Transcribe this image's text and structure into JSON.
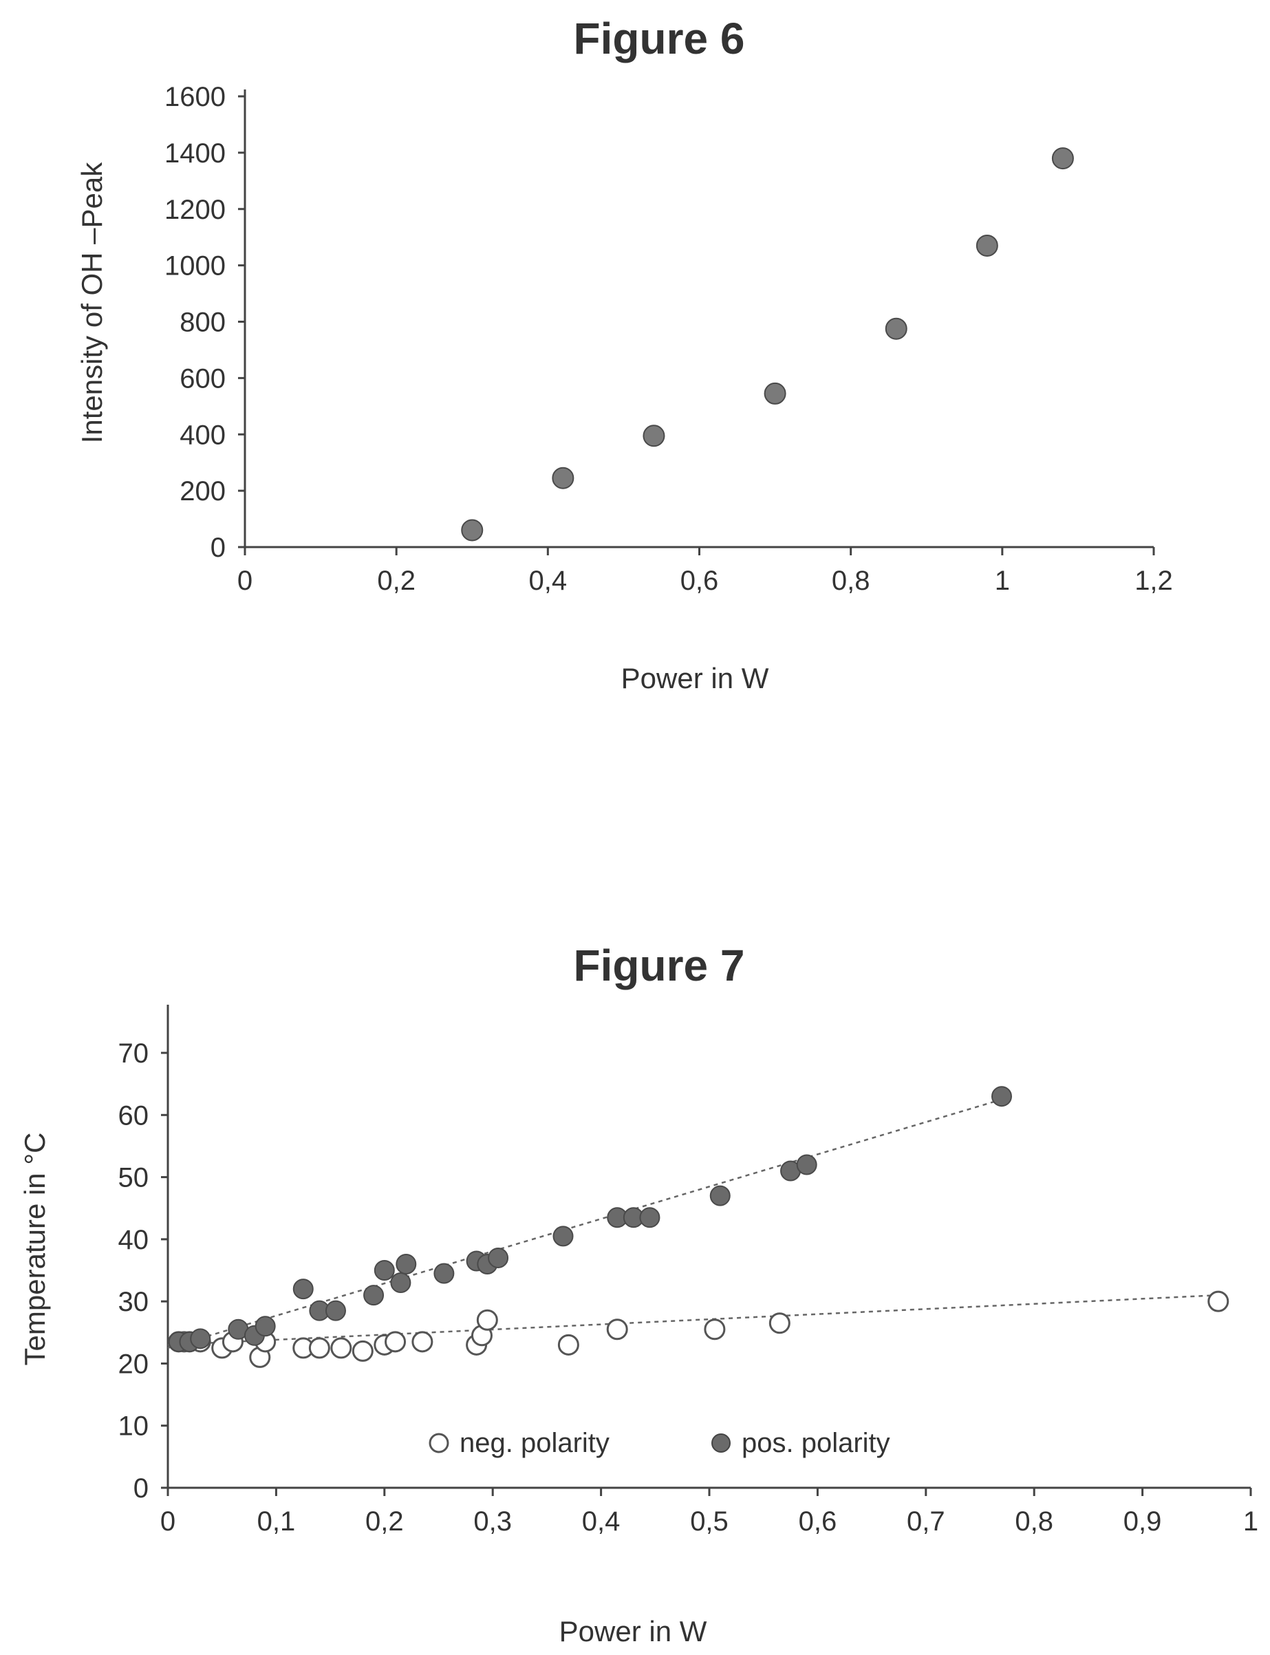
{
  "chart_data": [
    {
      "type": "scatter",
      "title": "Figure 6",
      "xlabel": "Power in W",
      "ylabel": "Intensity of OH –Peak",
      "xlim": [
        0,
        1.2
      ],
      "ylim": [
        0,
        1600
      ],
      "x_ticks": [
        "0",
        "0,2",
        "0,4",
        "0,6",
        "0,8",
        "1",
        "1,2"
      ],
      "y_ticks": [
        "0",
        "200",
        "400",
        "600",
        "800",
        "1000",
        "1200",
        "1400",
        "1600"
      ],
      "grid": false,
      "series": [
        {
          "marker": "filled-circle",
          "color": "#7a7a7a",
          "x": [
            0.3,
            0.42,
            0.54,
            0.7,
            0.86,
            0.98,
            1.08
          ],
          "y": [
            60,
            245,
            395,
            545,
            775,
            1070,
            1380
          ]
        }
      ]
    },
    {
      "type": "scatter",
      "title": "Figure 7",
      "xlabel": "Power in W",
      "ylabel": "Temperature in °C",
      "xlim": [
        0,
        1
      ],
      "ylim": [
        0,
        70
      ],
      "x_ticks": [
        "0",
        "0,1",
        "0,2",
        "0,3",
        "0,4",
        "0,5",
        "0,6",
        "0,7",
        "0,8",
        "0,9",
        "1"
      ],
      "y_ticks": [
        "0",
        "10",
        "20",
        "30",
        "40",
        "50",
        "60",
        "70"
      ],
      "grid": false,
      "legend_position": "bottom-center",
      "series": [
        {
          "name": "neg. polarity",
          "marker": "open-circle",
          "color": "#555555",
          "trendline": {
            "x": [
              0,
              0.97
            ],
            "y": [
              23,
              31
            ]
          },
          "x": [
            0.01,
            0.015,
            0.02,
            0.03,
            0.05,
            0.06,
            0.085,
            0.09,
            0.125,
            0.14,
            0.16,
            0.18,
            0.2,
            0.21,
            0.235,
            0.285,
            0.29,
            0.295,
            0.37,
            0.415,
            0.505,
            0.565,
            0.97
          ],
          "y": [
            23.5,
            23.5,
            23.5,
            23.5,
            22.5,
            23.5,
            21,
            23.5,
            22.5,
            22.5,
            22.5,
            22,
            23,
            23.5,
            23.5,
            23,
            24.5,
            27,
            23,
            25.5,
            25.5,
            26.5,
            30
          ]
        },
        {
          "name": "pos. polarity",
          "marker": "filled-circle",
          "color": "#6a6a6a",
          "trendline": {
            "x": [
              0,
              0.77
            ],
            "y": [
              22.5,
              62.5
            ]
          },
          "x": [
            0.01,
            0.02,
            0.03,
            0.065,
            0.08,
            0.09,
            0.125,
            0.14,
            0.155,
            0.19,
            0.2,
            0.215,
            0.22,
            0.255,
            0.285,
            0.295,
            0.305,
            0.365,
            0.415,
            0.43,
            0.445,
            0.51,
            0.575,
            0.59,
            0.77
          ],
          "y": [
            23.5,
            23.5,
            24,
            25.5,
            24.5,
            26,
            32,
            28.5,
            28.5,
            31,
            35,
            33,
            36,
            34.5,
            36.5,
            36,
            37,
            40.5,
            43.5,
            43.5,
            43.5,
            47,
            51,
            52,
            63
          ]
        }
      ]
    }
  ]
}
